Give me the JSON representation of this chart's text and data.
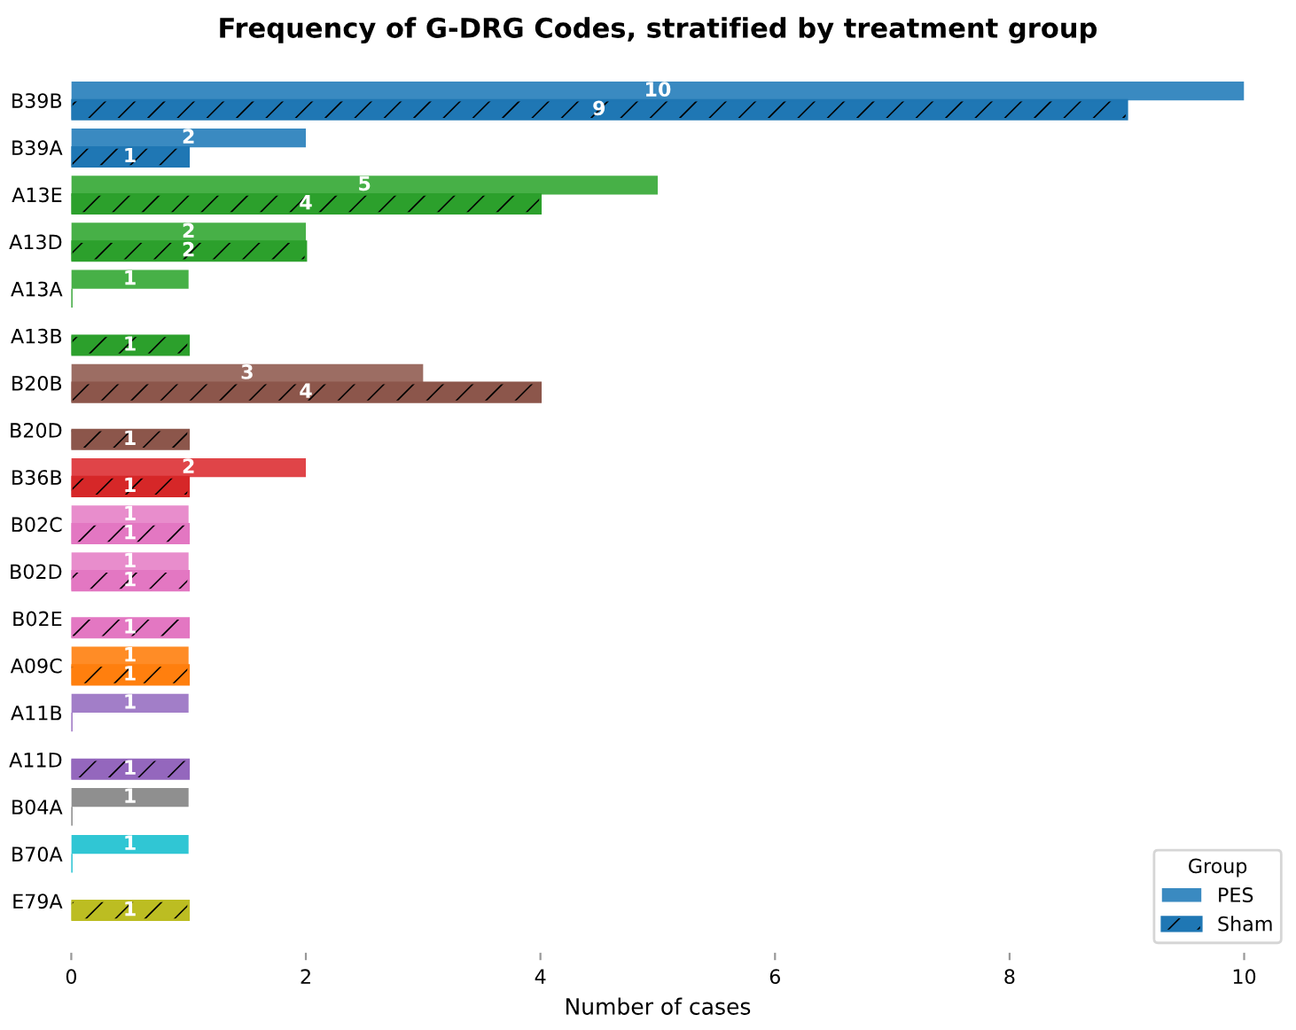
{
  "chart_data": {
    "type": "bar",
    "orientation": "horizontal",
    "title": "Frequency of G-DRG Codes, stratified by treatment group",
    "xlabel": "Number of cases",
    "legend_title": "Group",
    "legend": "bottom right",
    "grid": false,
    "categories": [
      "B39B",
      "B39A",
      "A13E",
      "A13D",
      "A13A",
      "A13B",
      "B20B",
      "B20D",
      "B36B",
      "B02C",
      "B02D",
      "B02E",
      "A09C",
      "A11B",
      "A11D",
      "B04A",
      "B70A",
      "E79A"
    ],
    "series": [
      {
        "name": "PES",
        "colors": [
          "#3a8ac1",
          "#3a8ac1",
          "#47b047",
          "#47b047",
          "#47b047",
          "#47b047",
          "#9c6d63",
          "#9c6d63",
          "#e04448",
          "#e88dcc",
          "#e88dcc",
          "#e88dcc",
          "#ff8c26",
          "#a27ec8",
          "#a27ec8",
          "#8f8f8f",
          "#30c6d4",
          "#c6c63a"
        ],
        "values": [
          10,
          2,
          5,
          2,
          1,
          0,
          3,
          0,
          2,
          1,
          1,
          0,
          1,
          1,
          0,
          1,
          1,
          0
        ],
        "value_labels": [
          "10",
          "2",
          "5",
          "2",
          "1",
          null,
          "3",
          null,
          "2",
          "1",
          "1",
          null,
          "1",
          "1",
          null,
          "1",
          "1",
          null
        ]
      },
      {
        "name": "Sham",
        "colors": [
          "#1f77b4",
          "#1f77b4",
          "#2ca02c",
          "#2ca02c",
          "#2ca02c",
          "#2ca02c",
          "#8c564b",
          "#8c564b",
          "#d62728",
          "#e377c2",
          "#e377c2",
          "#e377c2",
          "#ff7f0e",
          "#9467bd",
          "#9467bd",
          "#7f7f7f",
          "#17becf",
          "#bcbd22"
        ],
        "values": [
          9,
          1,
          4,
          2,
          0,
          1,
          4,
          1,
          1,
          1,
          1,
          1,
          1,
          0,
          1,
          0,
          0,
          1
        ],
        "value_labels": [
          "9",
          "1",
          "4",
          "2",
          null,
          "1",
          "4",
          "1",
          "1",
          "1",
          "1",
          "1",
          "1",
          null,
          "1",
          null,
          null,
          "1"
        ]
      }
    ],
    "xlim": [
      0,
      10
    ],
    "xticks": [
      0,
      2,
      4,
      6,
      8,
      10
    ]
  }
}
